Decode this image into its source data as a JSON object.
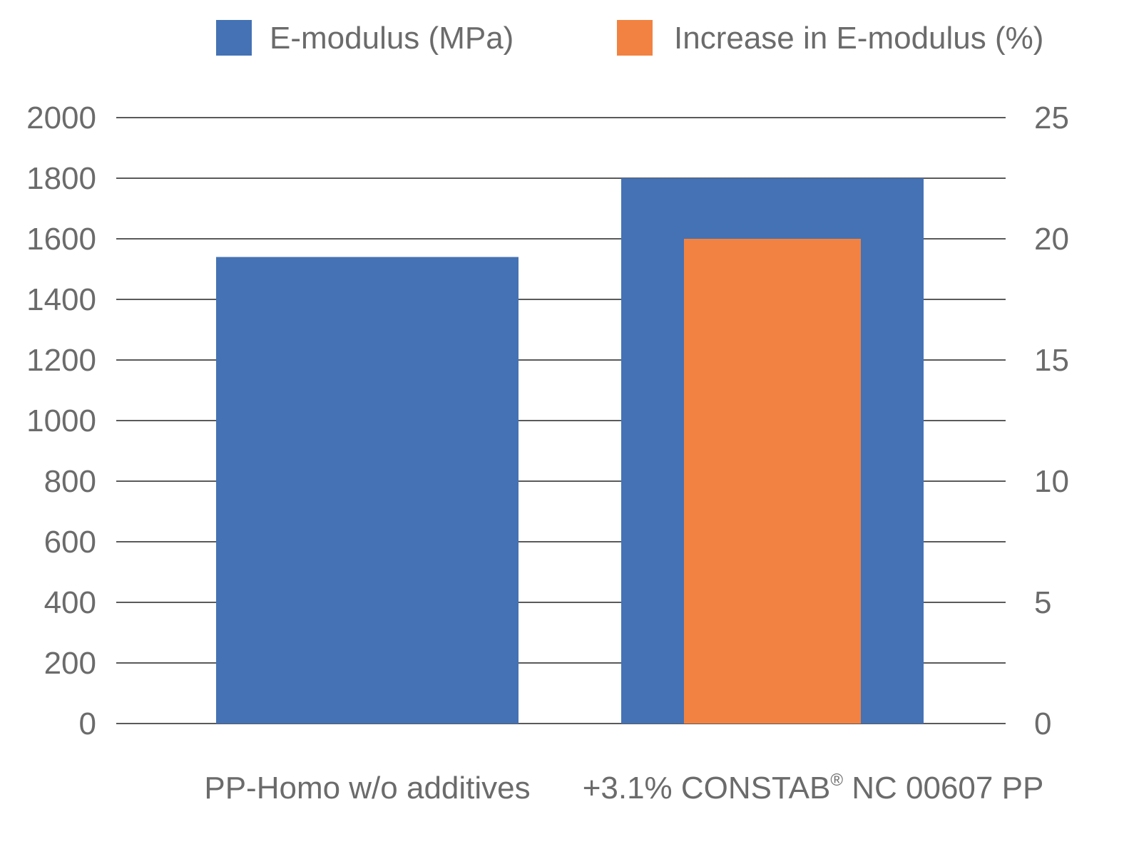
{
  "chart_data": {
    "type": "bar",
    "categories": [
      "PP-Homo w/o additives",
      "+3.1% CONSTAB® NC 00607 PP"
    ],
    "category_parts": [
      {
        "main": "PP-Homo w/o additives"
      },
      {
        "pre": "+3.1% CONSTAB",
        "sup": "®",
        "post": " NC 00607 PP"
      }
    ],
    "series": [
      {
        "name": "E-modulus (MPa)",
        "axis": "left",
        "color": "#4472b4",
        "values": [
          1540,
          1800
        ]
      },
      {
        "name": "Increase in E-modulus (%)",
        "axis": "right",
        "color": "#f28241",
        "values": [
          null,
          20
        ]
      }
    ],
    "y_left": {
      "min": 0,
      "max": 2000,
      "ticks": [
        "0",
        "200",
        "400",
        "600",
        "800",
        "1000",
        "1200",
        "1400",
        "1600",
        "1800",
        "2000"
      ]
    },
    "y_right": {
      "min": 0,
      "max": 25,
      "ticks": [
        "0",
        "5",
        "10",
        "15",
        "20",
        "25"
      ]
    },
    "legend_position": "top",
    "grid": true
  }
}
